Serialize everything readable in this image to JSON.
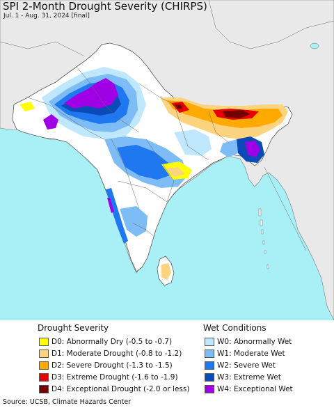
{
  "title": "SPI 2-Month Drought Severity (CHIRPS)",
  "subtitle": "Jul. 1 - Aug. 31, 2024 [final]",
  "colors": {
    "ocean": "#a9f0f6",
    "land_outside": "#e9e9e9",
    "land_normal": "#ffffff",
    "border": "#666666"
  },
  "legend": {
    "drought": {
      "heading": "Drought Severity",
      "items": [
        {
          "code": "D0",
          "label": "D0: Abnormally Dry (-0.5 to -0.7)",
          "color": "#ffff00"
        },
        {
          "code": "D1",
          "label": "D1: Moderate Drought (-0.8 to -1.2)",
          "color": "#fcd37f"
        },
        {
          "code": "D2",
          "label": "D2: Severe Drought (-1.3 to -1.5)",
          "color": "#ffaa00"
        },
        {
          "code": "D3",
          "label": "D3: Extreme Drought (-1.6 to -1.9)",
          "color": "#e60000"
        },
        {
          "code": "D4",
          "label": "D4: Exceptional Drought (-2.0 or less)",
          "color": "#730000"
        }
      ]
    },
    "wet": {
      "heading": "Wet Conditions",
      "items": [
        {
          "code": "W0",
          "label": "W0: Abnormally Wet",
          "color": "#bfe8ff"
        },
        {
          "code": "W1",
          "label": "W1: Moderate Wet",
          "color": "#7dbcf5"
        },
        {
          "code": "W2",
          "label": "W2: Severe Wet",
          "color": "#1f78f0"
        },
        {
          "code": "W3",
          "label": "W3: Extreme Wet",
          "color": "#0a4bb8"
        },
        {
          "code": "W4",
          "label": "W4: Exceptional Wet",
          "color": "#a000e6"
        }
      ]
    }
  },
  "source": "Source: UCSB, Climate Hazards Center"
}
